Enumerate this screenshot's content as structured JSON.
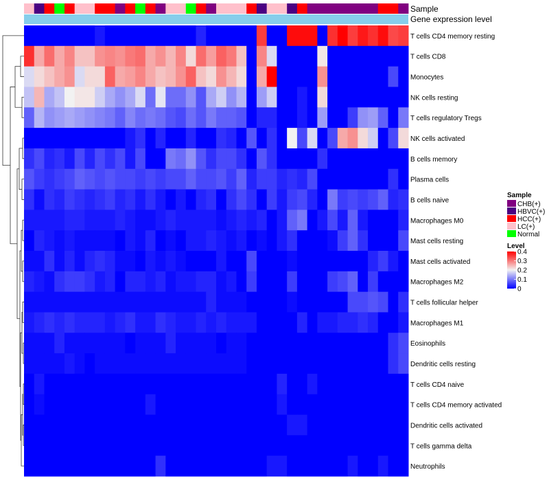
{
  "chart_data": {
    "type": "heatmap",
    "title": "",
    "annotation_tracks": [
      "Sample",
      "Gene expression level"
    ],
    "legend_sample_title": "Sample",
    "legend_sample_entries": [
      {
        "label": "CHB(+)",
        "color": "#800080"
      },
      {
        "label": "HBVC(+)",
        "color": "#4B0082"
      },
      {
        "label": "HCC(+)",
        "color": "#FF0000"
      },
      {
        "label": "LC(+)",
        "color": "#FFC0CB"
      },
      {
        "label": "Normal",
        "color": "#00FF00"
      }
    ],
    "legend_level_title": "Level",
    "legend_level_ticks": [
      0.4,
      0.3,
      0.2,
      0.1,
      0
    ],
    "value_range": [
      0,
      0.4
    ],
    "color_low": "#0000FF",
    "color_mid": "#F2F2F2",
    "color_high": "#FF0000",
    "expression_track_color": "#87CEEB",
    "sample_groups": [
      "LC(+)",
      "HBVC(+)",
      "HCC(+)",
      "Normal",
      "HCC(+)",
      "LC(+)",
      "LC(+)",
      "HCC(+)",
      "HCC(+)",
      "CHB(+)",
      "HCC(+)",
      "Normal",
      "HCC(+)",
      "CHB(+)",
      "LC(+)",
      "LC(+)",
      "Normal",
      "HCC(+)",
      "CHB(+)",
      "LC(+)",
      "LC(+)",
      "LC(+)",
      "HCC(+)",
      "HBVC(+)",
      "LC(+)",
      "LC(+)",
      "HBVC(+)",
      "HCC(+)",
      "CHB(+)",
      "CHB(+)",
      "CHB(+)",
      "CHB(+)",
      "CHB(+)",
      "CHB(+)",
      "CHB(+)",
      "HCC(+)",
      "HCC(+)",
      "CHB(+)"
    ],
    "rows": [
      "T cells CD4 memory resting",
      "T cells CD8",
      "Monocytes",
      "NK cells resting",
      "T cells regulatory  Tregs",
      "NK cells activated",
      "B cells memory",
      "Plasma cells",
      "B cells naive",
      "Macrophages M0",
      "Mast cells resting",
      "Mast cells activated",
      "Macrophages M2",
      "T cells follicular helper",
      "Macrophages M1",
      "Eosinophils",
      "Dendritic cells resting",
      "T cells CD4 naive",
      "T cells CD4 memory activated",
      "Dendritic cells activated",
      "T cells gamma delta",
      "Neutrophils"
    ],
    "values": [
      [
        0.0,
        0.0,
        0.0,
        0.0,
        0.0,
        0.0,
        0.0,
        0.02,
        0.0,
        0.0,
        0.0,
        0.0,
        0.0,
        0.0,
        0.0,
        0.0,
        0.0,
        0.03,
        0.0,
        0.0,
        0.0,
        0.0,
        0.0,
        0.35,
        0.0,
        0.0,
        0.39,
        0.39,
        0.39,
        0.0,
        0.36,
        0.4,
        0.35,
        0.38,
        0.36,
        0.39,
        0.34,
        0.35
      ],
      [
        0.36,
        0.26,
        0.31,
        0.26,
        0.29,
        0.24,
        0.24,
        0.28,
        0.29,
        0.28,
        0.3,
        0.31,
        0.26,
        0.28,
        0.25,
        0.29,
        0.22,
        0.31,
        0.27,
        0.32,
        0.3,
        0.24,
        0.0,
        0.29,
        0.18,
        0.0,
        0.0,
        0.0,
        0.0,
        0.21,
        0.0,
        0.0,
        0.0,
        0.0,
        0.0,
        0.0,
        0.0,
        0.0
      ],
      [
        0.18,
        0.22,
        0.24,
        0.26,
        0.28,
        0.18,
        0.22,
        0.22,
        0.32,
        0.26,
        0.27,
        0.29,
        0.26,
        0.24,
        0.25,
        0.28,
        0.32,
        0.24,
        0.22,
        0.28,
        0.25,
        0.22,
        0.0,
        0.26,
        0.4,
        0.0,
        0.0,
        0.0,
        0.0,
        0.28,
        0.0,
        0.0,
        0.0,
        0.0,
        0.0,
        0.0,
        0.06,
        0.0
      ],
      [
        0.16,
        0.25,
        0.14,
        0.16,
        0.2,
        0.21,
        0.21,
        0.17,
        0.14,
        0.12,
        0.14,
        0.18,
        0.09,
        0.19,
        0.09,
        0.09,
        0.12,
        0.07,
        0.14,
        0.17,
        0.12,
        0.15,
        0.0,
        0.13,
        0.17,
        0.0,
        0.0,
        0.02,
        0.0,
        0.22,
        0.0,
        0.0,
        0.0,
        0.0,
        0.0,
        0.0,
        0.0,
        0.0
      ],
      [
        0.08,
        0.15,
        0.12,
        0.13,
        0.14,
        0.13,
        0.12,
        0.11,
        0.1,
        0.08,
        0.11,
        0.09,
        0.1,
        0.09,
        0.07,
        0.06,
        0.09,
        0.07,
        0.1,
        0.08,
        0.08,
        0.07,
        0.0,
        0.03,
        0.03,
        0.0,
        0.0,
        0.02,
        0.0,
        0.13,
        0.0,
        0.0,
        0.05,
        0.12,
        0.13,
        0.08,
        0.0,
        0.1
      ],
      [
        0.0,
        0.0,
        0.0,
        0.0,
        0.0,
        0.0,
        0.0,
        0.0,
        0.0,
        0.0,
        0.02,
        0.04,
        0.0,
        0.03,
        0.0,
        0.0,
        0.03,
        0.0,
        0.0,
        0.04,
        0.03,
        0.0,
        0.07,
        0.0,
        0.04,
        0.0,
        0.2,
        0.06,
        0.18,
        0.0,
        0.06,
        0.26,
        0.28,
        0.22,
        0.17,
        0.0,
        0.06,
        0.22
      ],
      [
        0.04,
        0.06,
        0.03,
        0.04,
        0.02,
        0.06,
        0.03,
        0.06,
        0.04,
        0.06,
        0.02,
        0.06,
        0.0,
        0.0,
        0.1,
        0.09,
        0.12,
        0.07,
        0.04,
        0.06,
        0.06,
        0.04,
        0.0,
        0.07,
        0.04,
        0.0,
        0.0,
        0.0,
        0.0,
        0.04,
        0.0,
        0.0,
        0.0,
        0.0,
        0.0,
        0.0,
        0.0,
        0.0
      ],
      [
        0.07,
        0.05,
        0.04,
        0.05,
        0.06,
        0.08,
        0.07,
        0.06,
        0.07,
        0.06,
        0.06,
        0.05,
        0.06,
        0.05,
        0.06,
        0.06,
        0.08,
        0.06,
        0.06,
        0.07,
        0.05,
        0.08,
        0.03,
        0.05,
        0.05,
        0.03,
        0.04,
        0.03,
        0.06,
        0.0,
        0.0,
        0.0,
        0.0,
        0.0,
        0.0,
        0.0,
        0.04,
        0.0
      ],
      [
        0.04,
        0.01,
        0.04,
        0.03,
        0.05,
        0.04,
        0.03,
        0.04,
        0.05,
        0.03,
        0.04,
        0.02,
        0.04,
        0.02,
        0.0,
        0.02,
        0.0,
        0.03,
        0.04,
        0.0,
        0.04,
        0.06,
        0.04,
        0.0,
        0.05,
        0.02,
        0.05,
        0.06,
        0.03,
        0.0,
        0.1,
        0.05,
        0.06,
        0.05,
        0.06,
        0.08,
        0.03,
        0.04
      ],
      [
        0.02,
        0.02,
        0.02,
        0.02,
        0.03,
        0.03,
        0.02,
        0.02,
        0.02,
        0.03,
        0.02,
        0.01,
        0.01,
        0.02,
        0.03,
        0.02,
        0.02,
        0.02,
        0.02,
        0.01,
        0.02,
        0.03,
        0.02,
        0.03,
        0.0,
        0.02,
        0.08,
        0.1,
        0.0,
        0.02,
        0.06,
        0.02,
        0.08,
        0.02,
        0.0,
        0.0,
        0.0,
        0.03
      ],
      [
        0.0,
        0.03,
        0.02,
        0.01,
        0.02,
        0.01,
        0.01,
        0.01,
        0.01,
        0.0,
        0.02,
        0.01,
        0.03,
        0.0,
        0.01,
        0.0,
        0.02,
        0.02,
        0.03,
        0.02,
        0.01,
        0.02,
        0.0,
        0.01,
        0.0,
        0.02,
        0.04,
        0.0,
        0.0,
        0.0,
        0.01,
        0.05,
        0.08,
        0.04,
        0.0,
        0.0,
        0.0,
        0.06
      ],
      [
        0.01,
        0.01,
        0.04,
        0.01,
        0.03,
        0.01,
        0.03,
        0.04,
        0.03,
        0.01,
        0.01,
        0.0,
        0.02,
        0.01,
        0.02,
        0.01,
        0.0,
        0.0,
        0.0,
        0.02,
        0.0,
        0.0,
        0.06,
        0.0,
        0.0,
        0.0,
        0.01,
        0.0,
        0.0,
        0.0,
        0.0,
        0.0,
        0.0,
        0.0,
        0.03,
        0.05,
        0.02,
        0.0
      ],
      [
        0.03,
        0.02,
        0.01,
        0.04,
        0.05,
        0.05,
        0.04,
        0.02,
        0.03,
        0.0,
        0.03,
        0.03,
        0.02,
        0.03,
        0.01,
        0.02,
        0.02,
        0.03,
        0.03,
        0.01,
        0.02,
        0.0,
        0.05,
        0.0,
        0.0,
        0.0,
        0.05,
        0.0,
        0.0,
        0.0,
        0.05,
        0.06,
        0.08,
        0.0,
        0.05,
        0.0,
        0.0,
        0.0
      ],
      [
        0.01,
        0.01,
        0.01,
        0.01,
        0.01,
        0.01,
        0.01,
        0.01,
        0.01,
        0.01,
        0.01,
        0.01,
        0.01,
        0.01,
        0.01,
        0.01,
        0.01,
        0.01,
        0.03,
        0.01,
        0.01,
        0.01,
        0.0,
        0.0,
        0.0,
        0.0,
        0.01,
        0.0,
        0.0,
        0.0,
        0.0,
        0.0,
        0.06,
        0.06,
        0.07,
        0.06,
        0.0,
        0.04
      ],
      [
        0.02,
        0.03,
        0.04,
        0.03,
        0.04,
        0.03,
        0.03,
        0.03,
        0.02,
        0.03,
        0.04,
        0.02,
        0.02,
        0.04,
        0.03,
        0.02,
        0.02,
        0.03,
        0.02,
        0.03,
        0.02,
        0.02,
        0.02,
        0.0,
        0.0,
        0.0,
        0.0,
        0.03,
        0.0,
        0.02,
        0.02,
        0.03,
        0.03,
        0.04,
        0.03,
        0.0,
        0.0,
        0.02
      ],
      [
        0.01,
        0.01,
        0.01,
        0.03,
        0.01,
        0.01,
        0.01,
        0.01,
        0.01,
        0.01,
        0.0,
        0.01,
        0.01,
        0.01,
        0.03,
        0.01,
        0.01,
        0.01,
        0.01,
        0.0,
        0.01,
        0.01,
        0.0,
        0.0,
        0.0,
        0.0,
        0.0,
        0.0,
        0.0,
        0.0,
        0.0,
        0.0,
        0.0,
        0.0,
        0.0,
        0.0,
        0.04,
        0.06
      ],
      [
        0.01,
        0.01,
        0.01,
        0.01,
        0.02,
        0.01,
        0.0,
        0.01,
        0.01,
        0.01,
        0.01,
        0.01,
        0.01,
        0.01,
        0.01,
        0.01,
        0.01,
        0.01,
        0.01,
        0.01,
        0.01,
        0.01,
        0.0,
        0.0,
        0.0,
        0.0,
        0.0,
        0.0,
        0.0,
        0.0,
        0.0,
        0.0,
        0.0,
        0.0,
        0.0,
        0.0,
        0.04,
        0.06
      ],
      [
        0.0,
        0.02,
        0.0,
        0.0,
        0.0,
        0.0,
        0.0,
        0.0,
        0.0,
        0.0,
        0.0,
        0.0,
        0.0,
        0.0,
        0.0,
        0.0,
        0.0,
        0.0,
        0.0,
        0.0,
        0.0,
        0.0,
        0.0,
        0.0,
        0.0,
        0.03,
        0.0,
        0.0,
        0.02,
        0.0,
        0.0,
        0.0,
        0.0,
        0.0,
        0.0,
        0.0,
        0.0,
        0.0
      ],
      [
        0.0,
        0.01,
        0.0,
        0.0,
        0.0,
        0.0,
        0.0,
        0.0,
        0.0,
        0.0,
        0.0,
        0.0,
        0.02,
        0.0,
        0.0,
        0.0,
        0.0,
        0.0,
        0.0,
        0.0,
        0.0,
        0.0,
        0.0,
        0.0,
        0.0,
        0.02,
        0.0,
        0.0,
        0.0,
        0.0,
        0.0,
        0.0,
        0.0,
        0.0,
        0.0,
        0.0,
        0.0,
        0.0
      ],
      [
        0.0,
        0.0,
        0.0,
        0.0,
        0.0,
        0.0,
        0.0,
        0.0,
        0.0,
        0.0,
        0.0,
        0.0,
        0.0,
        0.0,
        0.0,
        0.0,
        0.0,
        0.0,
        0.0,
        0.0,
        0.0,
        0.0,
        0.0,
        0.0,
        0.0,
        0.0,
        0.02,
        0.02,
        0.0,
        0.0,
        0.0,
        0.0,
        0.0,
        0.0,
        0.0,
        0.0,
        0.0,
        0.0
      ],
      [
        0.0,
        0.0,
        0.0,
        0.0,
        0.0,
        0.0,
        0.0,
        0.0,
        0.0,
        0.0,
        0.0,
        0.0,
        0.0,
        0.0,
        0.0,
        0.0,
        0.0,
        0.0,
        0.0,
        0.0,
        0.0,
        0.0,
        0.0,
        0.0,
        0.0,
        0.0,
        0.0,
        0.0,
        0.0,
        0.0,
        0.0,
        0.0,
        0.0,
        0.0,
        0.0,
        0.0,
        0.0,
        0.0
      ],
      [
        0.0,
        0.0,
        0.0,
        0.0,
        0.0,
        0.0,
        0.0,
        0.0,
        0.0,
        0.0,
        0.0,
        0.0,
        0.0,
        0.04,
        0.0,
        0.0,
        0.0,
        0.0,
        0.0,
        0.0,
        0.0,
        0.0,
        0.0,
        0.0,
        0.02,
        0.02,
        0.0,
        0.0,
        0.0,
        0.0,
        0.0,
        0.0,
        0.02,
        0.0,
        0.0,
        0.02,
        0.0,
        0.0
      ]
    ]
  }
}
